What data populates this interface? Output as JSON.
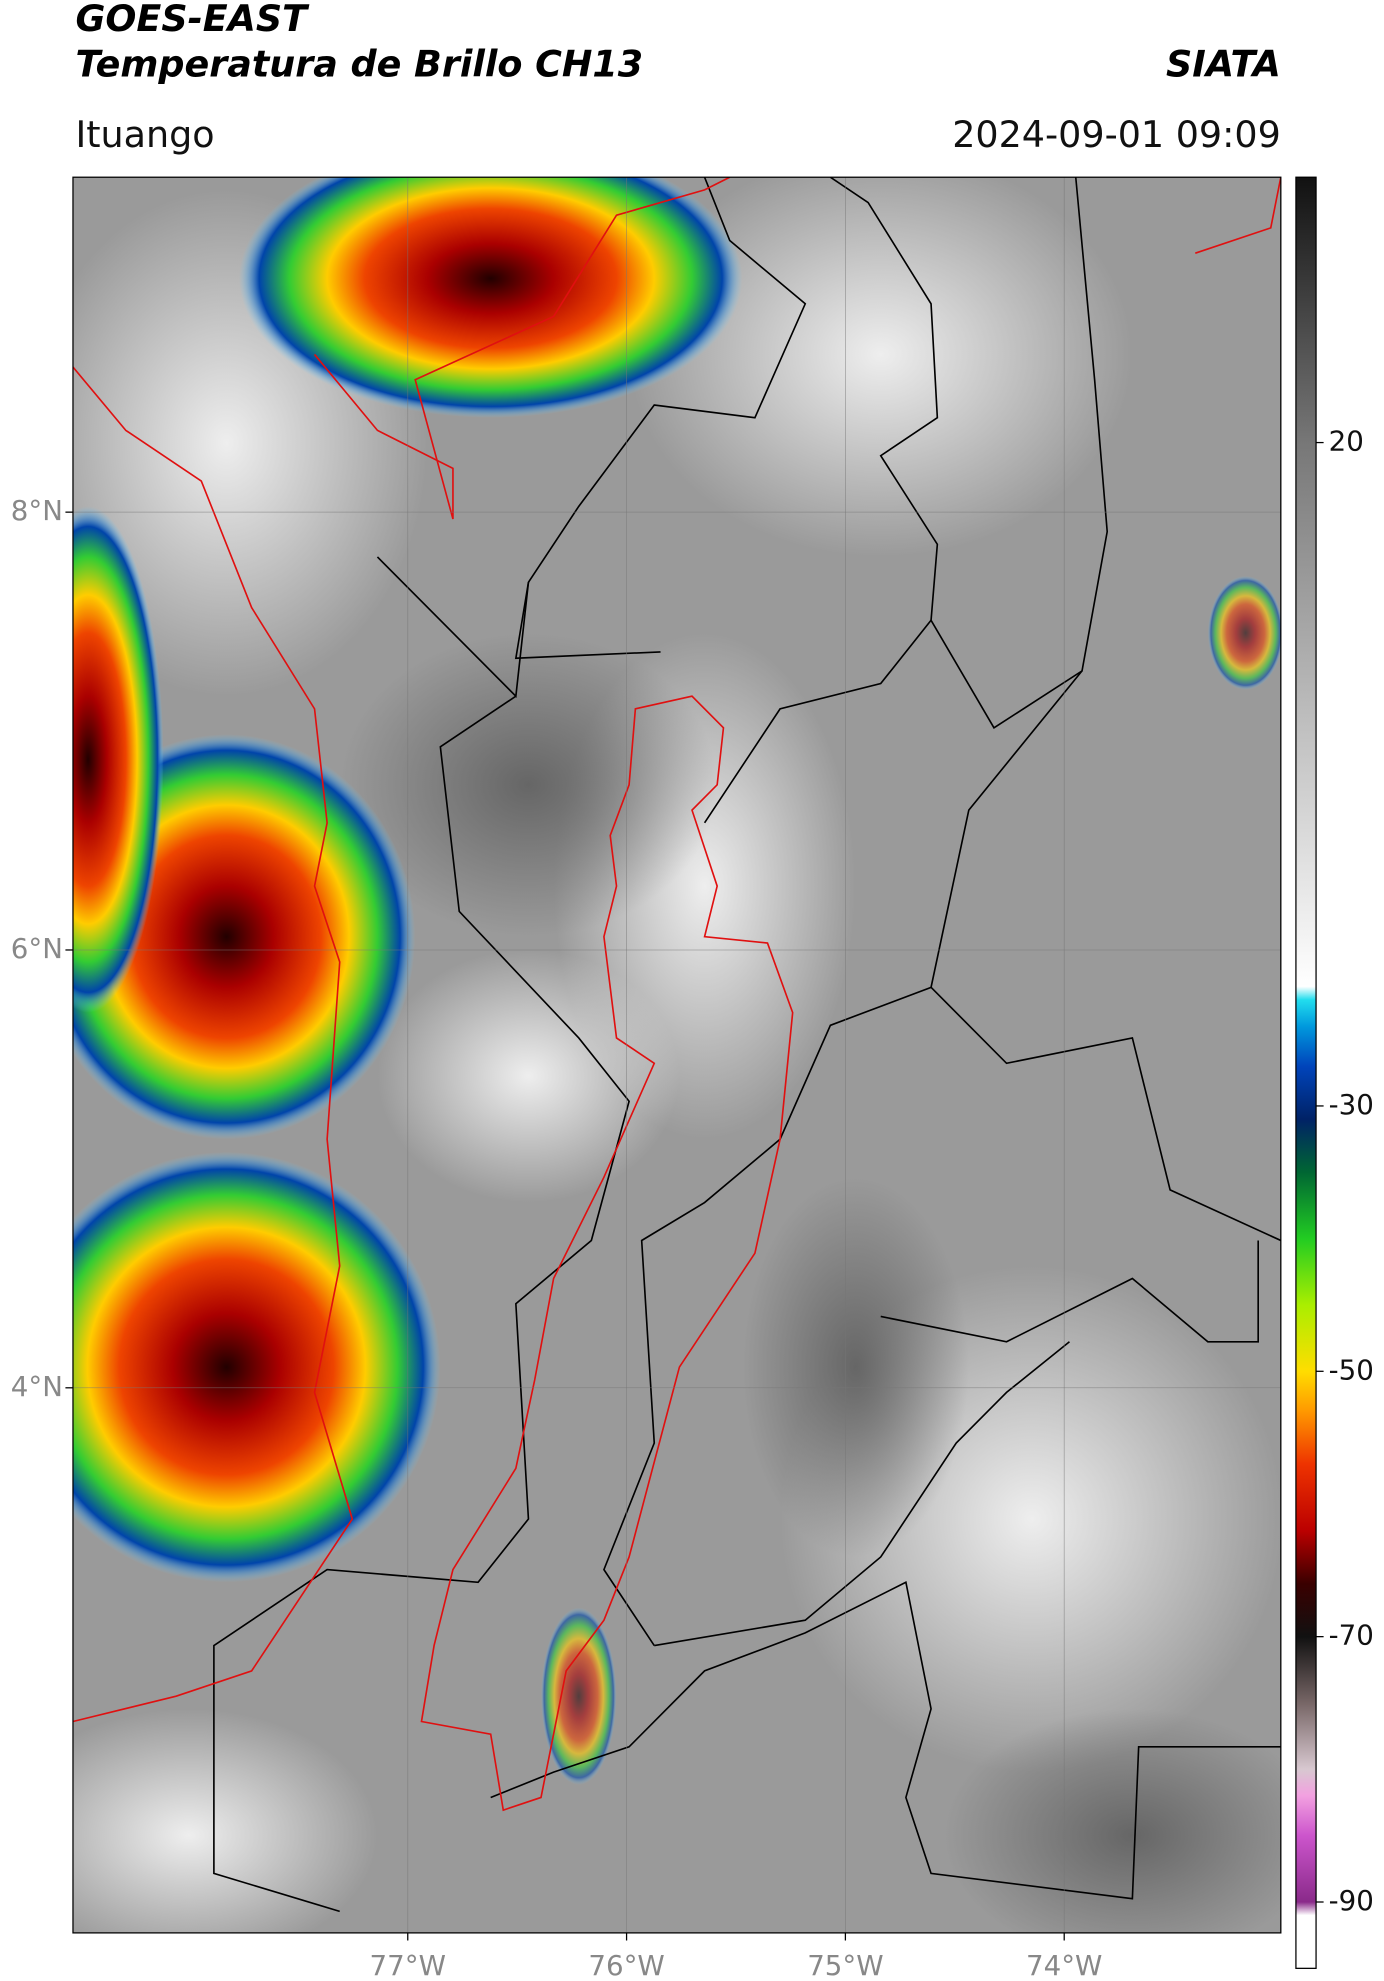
{
  "header": {
    "title": "GOES-EAST",
    "subtitle": "Temperatura de Brillo CH13",
    "source": "SIATA",
    "location": "Ituango",
    "datetime": "2024-09-01 09:09"
  },
  "map": {
    "xlim": [
      -78.53,
      -73.01
    ],
    "ylim": [
      1.51,
      9.53
    ],
    "xticks": [
      {
        "value": -77,
        "label": "77°W"
      },
      {
        "value": -76,
        "label": "76°W"
      },
      {
        "value": -75,
        "label": "75°W"
      },
      {
        "value": -74,
        "label": "74°W"
      }
    ],
    "yticks": [
      {
        "value": 8,
        "label": "8°N"
      },
      {
        "value": 6,
        "label": "6°N"
      },
      {
        "value": 4,
        "label": "4°N"
      }
    ],
    "grid": true
  },
  "colorbar": {
    "lim": [
      -95,
      40
    ],
    "ticks": [
      20,
      -30,
      -50,
      -70,
      -90
    ],
    "stops": [
      [
        -95,
        "#ffffff"
      ],
      [
        -91,
        "#ffffff"
      ],
      [
        -90,
        "#8a2a8a"
      ],
      [
        -85,
        "#cc55cc"
      ],
      [
        -82,
        "#f2a0e0"
      ],
      [
        -80,
        "#d8c8d0"
      ],
      [
        -75,
        "#776666"
      ],
      [
        -70,
        "#111111"
      ],
      [
        -66,
        "#3a0000"
      ],
      [
        -62,
        "#bb0000"
      ],
      [
        -57,
        "#ee3300"
      ],
      [
        -53,
        "#ff9900"
      ],
      [
        -50,
        "#ffdd00"
      ],
      [
        -45,
        "#aaee00"
      ],
      [
        -40,
        "#22cc22"
      ],
      [
        -35,
        "#006633"
      ],
      [
        -31,
        "#002266"
      ],
      [
        -27,
        "#0044bb"
      ],
      [
        -24,
        "#0099dd"
      ],
      [
        -22,
        "#22ddee"
      ],
      [
        -21,
        "#ffffff"
      ],
      [
        0,
        "#bbbbbb"
      ],
      [
        20,
        "#777777"
      ],
      [
        40,
        "#111111"
      ]
    ]
  }
}
